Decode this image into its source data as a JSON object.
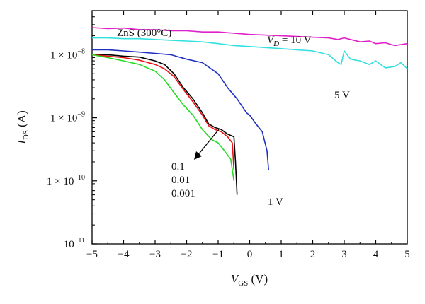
{
  "chart_data": {
    "type": "line",
    "title": "",
    "xlabel": {
      "main": "V",
      "sub": "GS",
      "unit": " (V)"
    },
    "ylabel": {
      "main": "I",
      "sub": "DS",
      "unit": " (A)"
    },
    "xlim": [
      -5,
      5
    ],
    "ylim_log10": [
      -11,
      -7.3
    ],
    "yscale": "log",
    "grid": false,
    "x_ticks": [
      -5,
      -4,
      -3,
      -2,
      -1,
      0,
      1,
      2,
      3,
      4,
      5
    ],
    "x_tick_labels": [
      "−5",
      "−4",
      "−3",
      "−2",
      "−1",
      "0",
      "1",
      "2",
      "3",
      "4",
      "5"
    ],
    "y_ticks": [
      {
        "value": 1e-08,
        "mant": "1 × 10",
        "exp": "−8"
      },
      {
        "value": 1e-09,
        "mant": "1 × 10",
        "exp": "−9"
      },
      {
        "value": 1e-10,
        "mant": "1 × 10",
        "exp": "−10"
      },
      {
        "value": 1e-11,
        "mant": "10",
        "exp": "−11"
      }
    ],
    "annotations": {
      "material": "ZnS (300°C)",
      "vd_label": {
        "pre": "V",
        "sub": "D",
        "post": " = 10 V"
      },
      "label_5v": "5 V",
      "label_1v": "1 V",
      "arrow_labels": [
        "0.1",
        "0.01",
        "0.001"
      ]
    },
    "series": [
      {
        "color": "#e020c8",
        "x": [
          -5,
          -4.5,
          -4,
          -3.5,
          -3,
          -2.5,
          -2,
          -1.5,
          -1,
          -0.5,
          0,
          0.5,
          1,
          1.5,
          2,
          2.5,
          2.8,
          3.0,
          3.2,
          3.5,
          3.8,
          4.0,
          4.3,
          4.6,
          5.0
        ],
        "y": [
          2.7e-08,
          2.6e-08,
          2.65e-08,
          2.5e-08,
          2.5e-08,
          2.4e-08,
          2.4e-08,
          2.3e-08,
          2.3e-08,
          2.2e-08,
          2.1e-08,
          2.05e-08,
          2e-08,
          1.95e-08,
          1.9e-08,
          1.85e-08,
          1.75e-08,
          1.85e-08,
          1.75e-08,
          1.6e-08,
          1.65e-08,
          1.5e-08,
          1.55e-08,
          1.4e-08,
          1.5e-08
        ]
      },
      {
        "color": "#33e0e0",
        "x": [
          -5,
          -4.5,
          -4,
          -3.5,
          -3,
          -2.5,
          -2,
          -1.5,
          -1,
          -0.5,
          0,
          0.5,
          1,
          1.5,
          2,
          2.5,
          2.8,
          2.9,
          3.0,
          3.2,
          3.5,
          3.8,
          4.0,
          4.3,
          4.6,
          4.8,
          5.0
        ],
        "y": [
          1.85e-08,
          1.85e-08,
          1.8e-08,
          1.8e-08,
          1.75e-08,
          1.7e-08,
          1.65e-08,
          1.6e-08,
          1.5e-08,
          1.4e-08,
          1.35e-08,
          1.3e-08,
          1.25e-08,
          1.2e-08,
          1.15e-08,
          1e-08,
          7.5e-09,
          7e-09,
          1.15e-08,
          8.5e-09,
          8e-09,
          7e-09,
          8e-09,
          6.2e-09,
          6.5e-09,
          7.5e-09,
          6e-09
        ]
      },
      {
        "color": "#2030c0",
        "x": [
          -5,
          -4.5,
          -4,
          -3.5,
          -3,
          -2.5,
          -2,
          -1.5,
          -1,
          -0.7,
          -0.4,
          -0.1,
          0,
          0.2,
          0.4,
          0.55,
          0.6
        ],
        "y": [
          1.2e-08,
          1.2e-08,
          1.15e-08,
          1.1e-08,
          1.05e-08,
          1e-08,
          8.5e-09,
          7.5e-09,
          5e-09,
          3e-09,
          2e-09,
          1.2e-09,
          1.1e-09,
          8e-10,
          6e-10,
          3e-10,
          1.5e-10
        ]
      },
      {
        "color": "#000000",
        "x": [
          -5,
          -4.5,
          -4,
          -3.5,
          -3,
          -2.7,
          -2.4,
          -2.1,
          -1.8,
          -1.5,
          -1.3,
          -1.1,
          -0.9,
          -0.7,
          -0.5,
          -0.45,
          -0.4
        ],
        "y": [
          1e-08,
          1e-08,
          9.5e-09,
          9.2e-09,
          8e-09,
          7e-09,
          5e-09,
          3e-09,
          2e-09,
          1.2e-09,
          8e-10,
          7e-10,
          6.5e-10,
          5.5e-10,
          5e-10,
          2e-10,
          6e-11
        ]
      },
      {
        "color": "#ee1010",
        "x": [
          -5,
          -4.5,
          -4,
          -3.5,
          -3,
          -2.7,
          -2.4,
          -2.1,
          -1.8,
          -1.5,
          -1.3,
          -1.1,
          -0.9,
          -0.7,
          -0.55,
          -0.5
        ],
        "y": [
          1e-08,
          9.5e-09,
          9e-09,
          8.2e-09,
          7e-09,
          6e-09,
          4.5e-09,
          2.8e-09,
          1.8e-09,
          1.1e-09,
          7.5e-10,
          6.5e-10,
          6e-10,
          5e-10,
          4e-10,
          1.5e-10
        ]
      },
      {
        "color": "#22dd22",
        "x": [
          -5,
          -4.5,
          -4,
          -3.5,
          -3,
          -2.7,
          -2.4,
          -2.1,
          -1.8,
          -1.5,
          -1.2,
          -1.0,
          -0.8,
          -0.6,
          -0.5
        ],
        "y": [
          1e-08,
          9e-09,
          8e-09,
          7e-09,
          5.5e-09,
          4e-09,
          2.5e-09,
          1.6e-09,
          1.1e-09,
          6.5e-10,
          4.5e-10,
          4e-10,
          3e-10,
          2.2e-10,
          1e-10
        ]
      }
    ]
  }
}
